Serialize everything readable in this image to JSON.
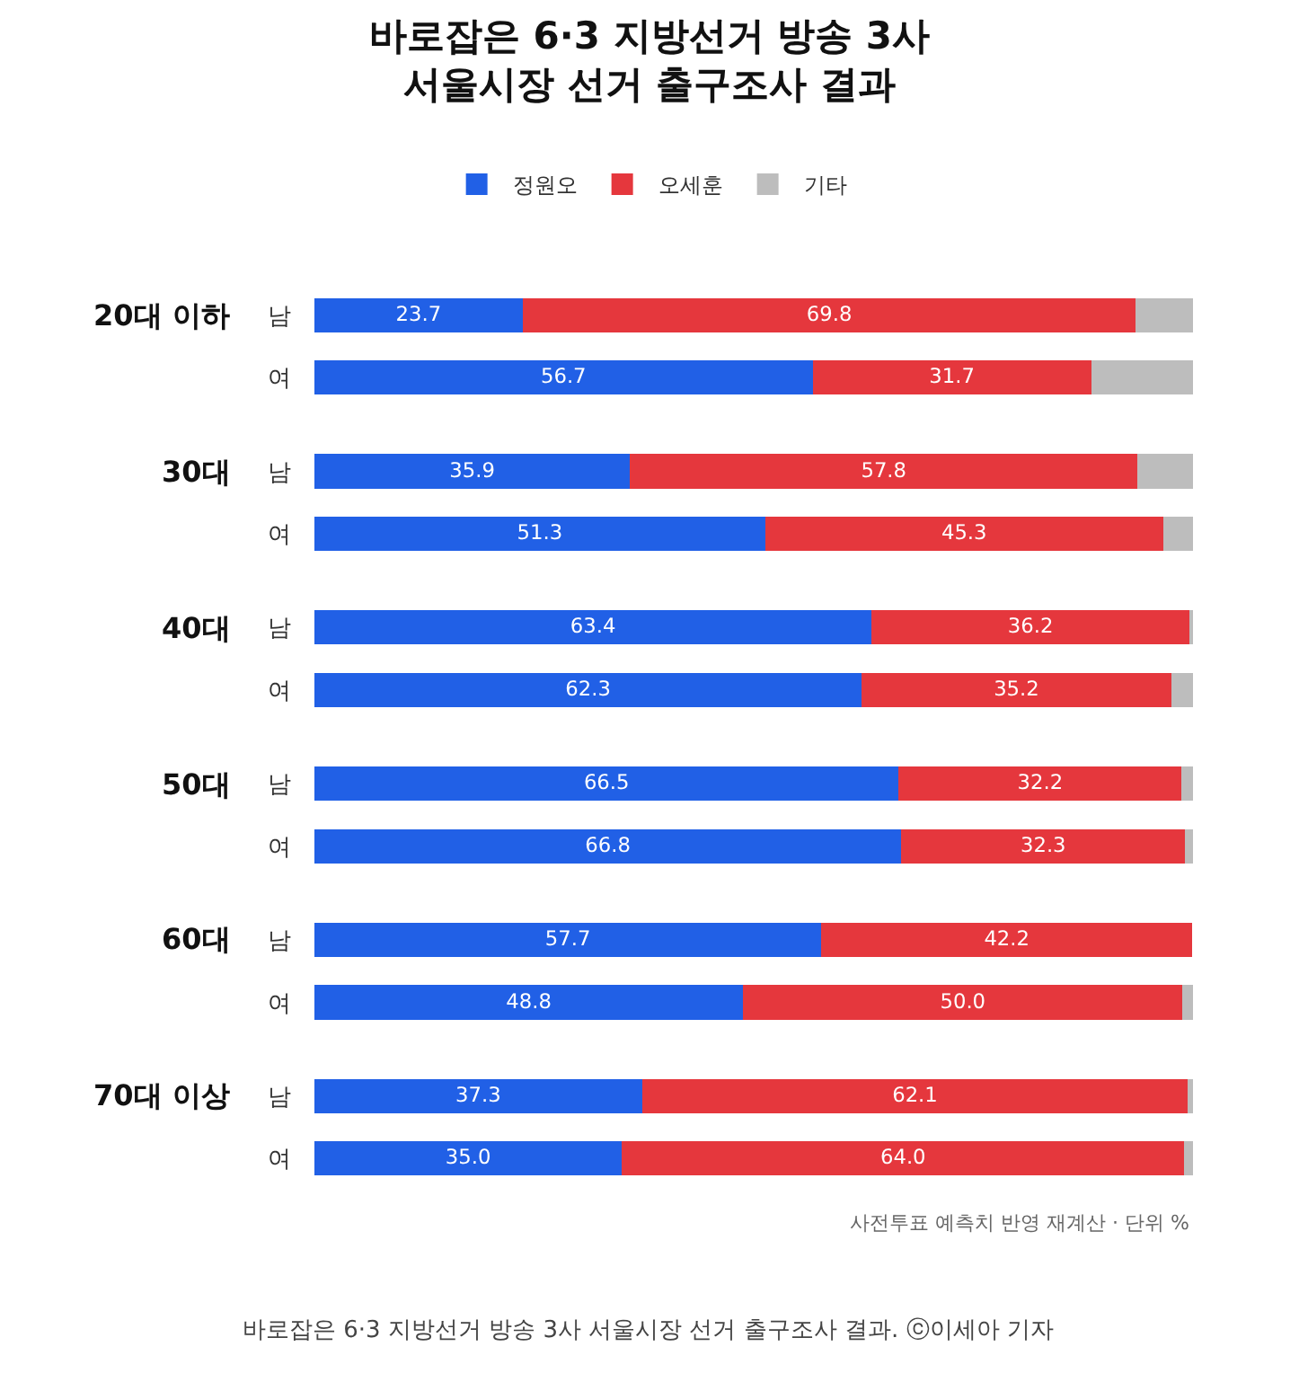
{
  "chart_data": {
    "type": "bar",
    "orientation": "horizontal",
    "stacked": true,
    "title": "바로잡은 6·3 지방선거 방송 3사\n서울시장 선거 출구조사 결과",
    "categories": [
      "남",
      "여",
      "남",
      "여",
      "남",
      "여",
      "남",
      "여",
      "남",
      "여",
      "남",
      "여"
    ],
    "series": [
      {
        "name": "정원오",
        "color": "#2160e6",
        "values": [
          23.7,
          56.7,
          35.9,
          51.3,
          63.4,
          62.3,
          66.5,
          66.8,
          57.7,
          48.8,
          37.3,
          35.0
        ],
        "value_labels": [
          "23.7",
          "56.7",
          "35.9",
          "51.3",
          "63.4",
          "62.3",
          "66.5",
          "66.8",
          "57.7",
          "48.8",
          "37.3",
          "35.0"
        ]
      },
      {
        "name": "오세훈",
        "color": "#e5373d",
        "values": [
          69.8,
          31.7,
          57.8,
          45.3,
          36.2,
          35.2,
          32.2,
          32.3,
          42.2,
          50.0,
          62.1,
          64.0
        ],
        "value_labels": [
          "69.8",
          "31.7",
          "57.8",
          "45.3",
          "36.2",
          "35.2",
          "32.2",
          "32.3",
          "42.2",
          "50.0",
          "62.1",
          "64.0"
        ]
      },
      {
        "name": "기타",
        "color": "#bdbdbd",
        "values": [
          6.5,
          11.6,
          6.3,
          3.4,
          0.4,
          2.5,
          1.3,
          0.9,
          null,
          1.2,
          0.6,
          1.0
        ]
      }
    ],
    "xlim": [
      0,
      100
    ],
    "tick_labels": "y",
    "grid": false,
    "legend": "top",
    "annotations": [
      "20대 이하",
      "30대",
      "40대",
      "50대",
      "60대",
      "70대 이상",
      "사전투표 예측치 반영 재계산 · 단위 %",
      "바로잡은 6·3 지방선거 방송 3사 서울시장 선거 출구조사 결과. ⓒ이세아 기자"
    ]
  }
}
